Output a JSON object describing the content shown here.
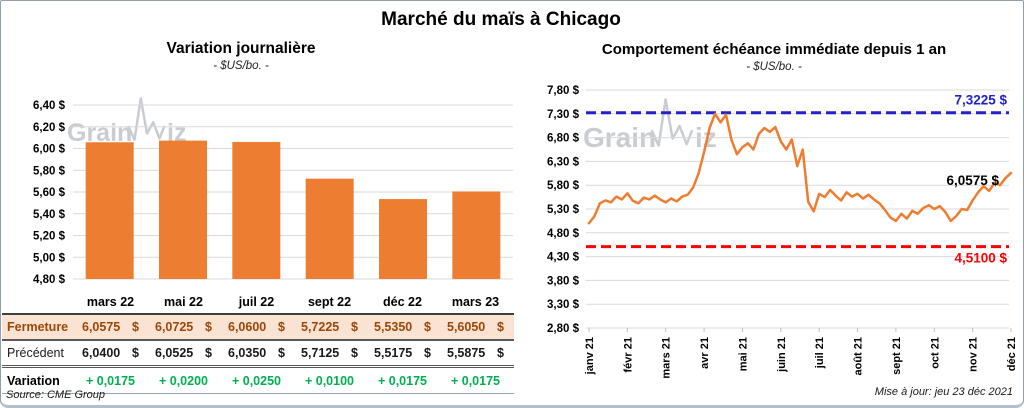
{
  "title": "Marché du maïs à Chicago",
  "watermark": "GrainWiz",
  "source": "Source: CME Group",
  "updated": "Mise à jour: jeu 23 déc 2021",
  "colors": {
    "bar_orange": "#ED7D31",
    "line_orange": "#ED7D31",
    "resistance_blue": "#2222CC",
    "support_red": "#FF0000",
    "fermeture_bg": "#FAE3D3",
    "fermeture_text": "#9C4708",
    "variation_green": "#00B050",
    "gridline": "#DADADA",
    "watermark_gray": "#C9CDD2"
  },
  "chart_data": [
    {
      "type": "bar",
      "title": "Variation journalière",
      "subtitle": "- $US/bo. -",
      "categories": [
        "mars 22",
        "mai 22",
        "juil 22",
        "sept 22",
        "déc 22",
        "mars 23"
      ],
      "values": [
        6.0575,
        6.0725,
        6.06,
        5.7225,
        5.535,
        5.605
      ],
      "ylim": [
        4.8,
        6.4
      ],
      "ytick_step": 0.2,
      "y_tick_labels": [
        "6,40 $",
        "6,20 $",
        "6,00 $",
        "5,80 $",
        "5,60 $",
        "5,40 $",
        "5,20 $",
        "5,00 $",
        "4,80 $"
      ],
      "grid": true,
      "legend": "none"
    },
    {
      "type": "line",
      "title": "Comportement échéance immédiate depuis 1 an",
      "subtitle": "- $US/bo. -",
      "ylim": [
        2.8,
        7.8
      ],
      "ytick_step": 0.5,
      "y_tick_labels": [
        "7,80 $",
        "7,30 $",
        "6,80 $",
        "6,30 $",
        "5,80 $",
        "5,30 $",
        "4,80 $",
        "4,30 $",
        "3,80 $",
        "3,30 $",
        "2,80 $"
      ],
      "x_tick_labels": [
        "janv 21",
        "févr 21",
        "mars 21",
        "avr 21",
        "mai 21",
        "juin 21",
        "juil 21",
        "août 21",
        "sept 21",
        "oct 21",
        "nov 21",
        "déc 21"
      ],
      "values": [
        5.0,
        5.15,
        5.42,
        5.48,
        5.44,
        5.56,
        5.5,
        5.63,
        5.47,
        5.42,
        5.54,
        5.5,
        5.58,
        5.5,
        5.44,
        5.52,
        5.46,
        5.56,
        5.6,
        5.75,
        6.05,
        6.5,
        7.0,
        7.3,
        7.12,
        7.28,
        6.75,
        6.45,
        6.6,
        6.68,
        6.55,
        6.88,
        7.0,
        6.92,
        7.02,
        6.72,
        6.55,
        6.76,
        6.2,
        6.55,
        5.45,
        5.25,
        5.62,
        5.55,
        5.7,
        5.58,
        5.48,
        5.65,
        5.56,
        5.62,
        5.52,
        5.6,
        5.5,
        5.42,
        5.28,
        5.12,
        5.05,
        5.2,
        5.1,
        5.26,
        5.2,
        5.32,
        5.38,
        5.3,
        5.36,
        5.24,
        5.05,
        5.15,
        5.3,
        5.28,
        5.48,
        5.65,
        5.78,
        5.68,
        5.85,
        5.8,
        5.95,
        6.0575
      ],
      "ref_lines": [
        {
          "role": "resistance",
          "value": 7.3225,
          "label": "7,3225 $",
          "color": "#2222CC"
        },
        {
          "role": "support",
          "value": 4.51,
          "label": "4,5100 $",
          "color": "#FF0000"
        }
      ],
      "last_point": {
        "value": 6.0575,
        "label": "6,0575 $"
      },
      "grid": true,
      "legend": "none"
    }
  ],
  "table": {
    "col_headers": [
      "mars 22",
      "mai 22",
      "juil 22",
      "sept 22",
      "déc 22",
      "mars 23"
    ],
    "rows": [
      {
        "key": "fermeture",
        "label": "Fermeture",
        "values": [
          "6,0575 $",
          "6,0725 $",
          "6,0600 $",
          "5,7225 $",
          "5,5350 $",
          "5,6050 $"
        ]
      },
      {
        "key": "precedent",
        "label": "Précédent",
        "values": [
          "6,0400 $",
          "6,0525 $",
          "6,0350 $",
          "5,7125 $",
          "5,5175 $",
          "5,5875 $"
        ]
      },
      {
        "key": "variation",
        "label": "Variation",
        "values": [
          "+ 0,0175",
          "+ 0,0200",
          "+ 0,0250",
          "+ 0,0100",
          "+ 0,0175",
          "+ 0,0175"
        ]
      }
    ]
  }
}
